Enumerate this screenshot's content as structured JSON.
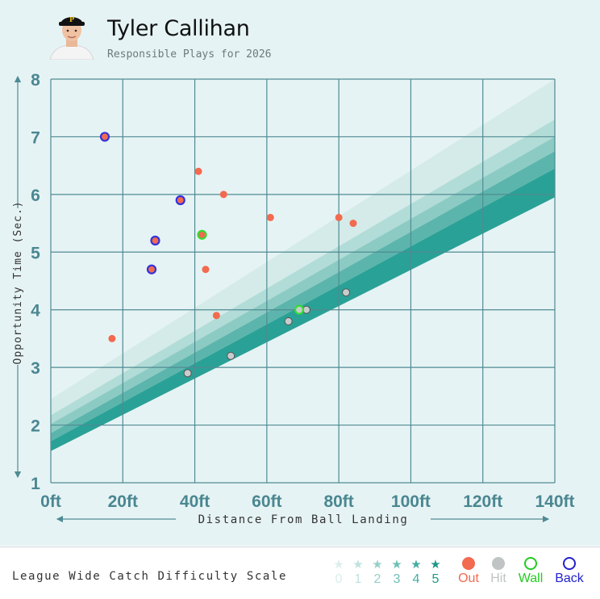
{
  "header": {
    "player_name": "Tyler Callihan",
    "subtitle": "Responsible Plays for 2026"
  },
  "chart_data": {
    "type": "scatter",
    "xlabel": "Distance From Ball Landing",
    "ylabel": "Opportunity Time (Sec.)",
    "xlim": [
      0,
      140
    ],
    "ylim": [
      1,
      8
    ],
    "x_ticks": [
      "0ft",
      "20ft",
      "40ft",
      "60ft",
      "80ft",
      "100ft",
      "120ft",
      "140ft"
    ],
    "y_ticks": [
      "1",
      "2",
      "3",
      "4",
      "5",
      "6",
      "7",
      "8"
    ],
    "grid": true,
    "difficulty_bands": {
      "colors": [
        "#d4ebe9",
        "#b2dcd7",
        "#8ccbc4",
        "#5cb5ac",
        "#2aa196"
      ],
      "boundaries_at_x0": [
        2.45,
        2.17,
        2.02,
        1.86,
        1.72,
        1.55
      ],
      "boundaries_at_x140": [
        8.0,
        7.3,
        7.0,
        6.75,
        6.45,
        5.95
      ]
    },
    "series": [
      {
        "name": "Out",
        "color": "#f26a4f",
        "points": [
          [
            41,
            6.4
          ],
          [
            48,
            6.0
          ],
          [
            61,
            5.6
          ],
          [
            80,
            5.6
          ],
          [
            84,
            5.5
          ],
          [
            43,
            4.7
          ],
          [
            46,
            3.9
          ],
          [
            17,
            3.5
          ]
        ]
      },
      {
        "name": "Hit",
        "color": "#c8cccc",
        "points": [
          [
            71,
            4.0
          ],
          [
            66,
            3.8
          ],
          [
            82,
            4.3
          ],
          [
            50,
            3.2
          ],
          [
            38,
            2.9
          ]
        ]
      },
      {
        "name": "Wall",
        "color": "#33dd33",
        "fill": "#f26a4f",
        "points": [
          [
            42,
            5.3
          ]
        ]
      },
      {
        "name": "Wall",
        "color": "#33dd33",
        "fill": "#c8cccc",
        "points": [
          [
            69,
            4.0
          ]
        ]
      },
      {
        "name": "Back",
        "color": "#3333dd",
        "fill": "#f26a4f",
        "points": [
          [
            15,
            7.0
          ],
          [
            36,
            5.9
          ],
          [
            29,
            5.2
          ],
          [
            28,
            4.7
          ]
        ]
      }
    ]
  },
  "footer": {
    "scale_title": "League Wide Catch Difficulty Scale",
    "stars": [
      {
        "label": "0",
        "color": "#dbeeec"
      },
      {
        "label": "1",
        "color": "#c0e2de"
      },
      {
        "label": "2",
        "color": "#97cfc8"
      },
      {
        "label": "3",
        "color": "#6fbfb6"
      },
      {
        "label": "4",
        "color": "#45aca1"
      },
      {
        "label": "5",
        "color": "#1e9788"
      }
    ],
    "legend": [
      {
        "label": "Out",
        "color": "#f26a4f",
        "marker": "filled"
      },
      {
        "label": "Hit",
        "color": "#c0c4c4",
        "marker": "filled"
      },
      {
        "label": "Wall",
        "color": "#22cc22",
        "marker": "ring"
      },
      {
        "label": "Back",
        "color": "#2222cc",
        "marker": "ring"
      }
    ]
  }
}
